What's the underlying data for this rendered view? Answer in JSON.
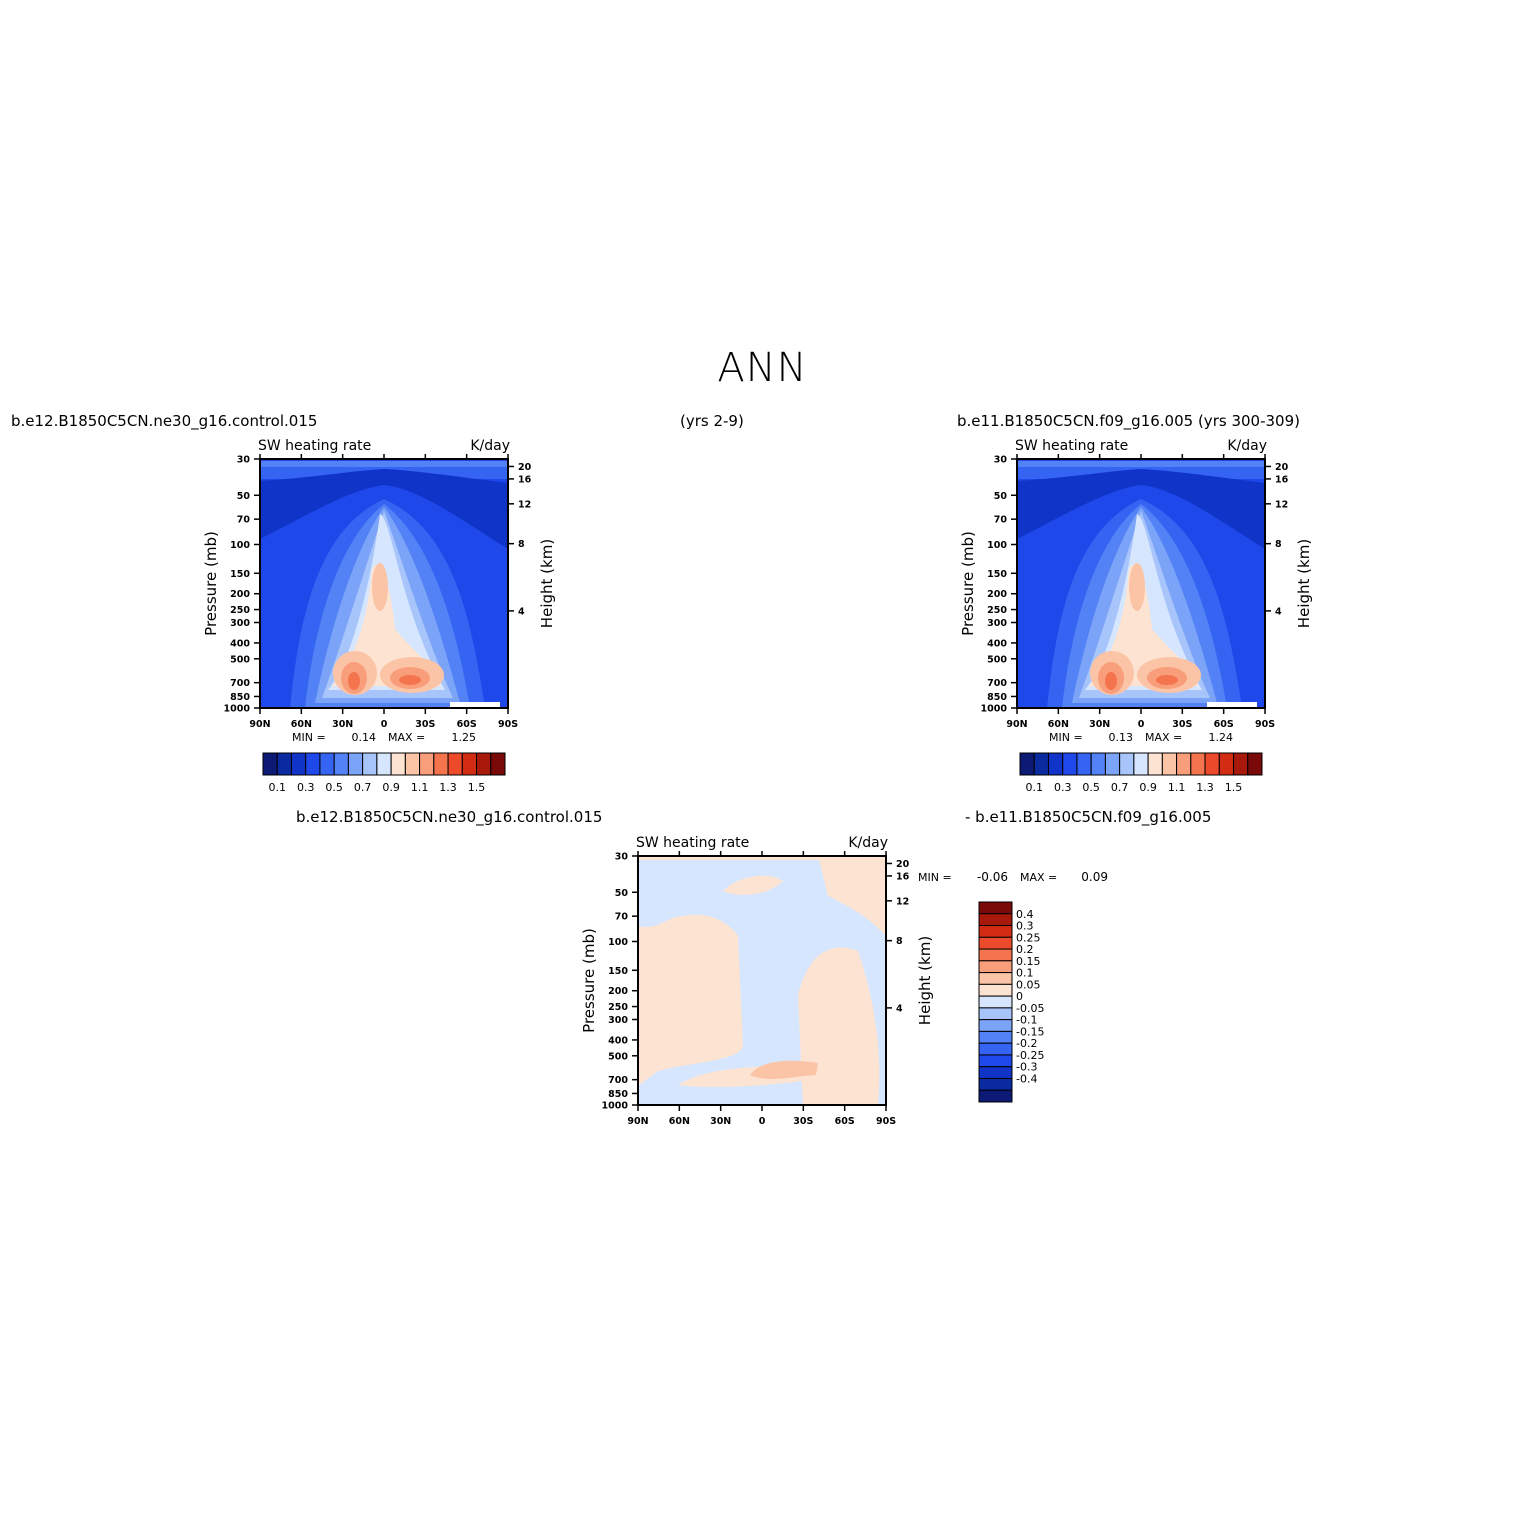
{
  "title": "ANN",
  "header": {
    "left_case": "b.e12.B1850C5CN.ne30_g16.control.015",
    "left_years": "(yrs 2-9)",
    "right_case": "b.e11.B1850C5CN.f09_g16.005 (yrs 300-309)",
    "diff_left": "b.e12.B1850C5CN.ne30_g16.control.015",
    "diff_right": "- b.e11.B1850C5CN.f09_g16.005"
  },
  "colors": {
    "scale_top": [
      "#0d1a75",
      "#0a2aa0",
      "#1034c8",
      "#1e48ea",
      "#3563f2",
      "#5282f5",
      "#7ba3f8",
      "#a8c5fb",
      "#d6e6fe",
      "#fde4d2",
      "#fcc4a6",
      "#f99e7a",
      "#f4744e",
      "#ec4a2a",
      "#d32c14",
      "#a8190c",
      "#7a0a0a"
    ],
    "scale_diff": [
      "#7a0a0a",
      "#a8190c",
      "#d32c14",
      "#ec4a2a",
      "#f4744e",
      "#f99e7a",
      "#fcc4a6",
      "#fde4d2",
      "#d6e6fe",
      "#a8c5fb",
      "#7ba3f8",
      "#5282f5",
      "#3563f2",
      "#1e48ea",
      "#1034c8",
      "#0a2aa0",
      "#0d1a75"
    ]
  },
  "chart_data": [
    {
      "type": "heatmap",
      "panel": "control",
      "label_left": "SW heating rate",
      "label_right": "K/day",
      "ylabel": "Pressure (mb)",
      "ylabel_right": "Height (km)",
      "x_ticks": [
        "90N",
        "60N",
        "30N",
        "0",
        "30S",
        "60S",
        "90S"
      ],
      "y_ticks": [
        "30",
        "50",
        "70",
        "100",
        "150",
        "200",
        "250",
        "300",
        "400",
        "500",
        "700",
        "850",
        "1000"
      ],
      "height_ticks": [
        "20",
        "16",
        "12",
        "8",
        "4"
      ],
      "min_label": "MIN =",
      "min_value": "0.14",
      "max_label": "MAX =",
      "max_value": "1.25",
      "colorbar_labels": [
        "0.1",
        "0.3",
        "0.5",
        "0.7",
        "0.9",
        "1.1",
        "1.3",
        "1.5"
      ]
    },
    {
      "type": "heatmap",
      "panel": "f09",
      "label_left": "SW heating rate",
      "label_right": "K/day",
      "ylabel": "Pressure (mb)",
      "ylabel_right": "Height (km)",
      "x_ticks": [
        "90N",
        "60N",
        "30N",
        "0",
        "30S",
        "60S",
        "90S"
      ],
      "y_ticks": [
        "30",
        "50",
        "70",
        "100",
        "150",
        "200",
        "250",
        "300",
        "400",
        "500",
        "700",
        "850",
        "1000"
      ],
      "height_ticks": [
        "20",
        "16",
        "12",
        "8",
        "4"
      ],
      "min_label": "MIN =",
      "min_value": "0.13",
      "max_label": "MAX =",
      "max_value": "1.24",
      "colorbar_labels": [
        "0.1",
        "0.3",
        "0.5",
        "0.7",
        "0.9",
        "1.1",
        "1.3",
        "1.5"
      ]
    },
    {
      "type": "heatmap",
      "panel": "difference",
      "label_left": "SW heating rate",
      "label_right": "K/day",
      "ylabel": "Pressure (mb)",
      "ylabel_right": "Height (km)",
      "x_ticks": [
        "90N",
        "60N",
        "30N",
        "0",
        "30S",
        "60S",
        "90S"
      ],
      "y_ticks": [
        "30",
        "50",
        "70",
        "100",
        "150",
        "200",
        "250",
        "300",
        "400",
        "500",
        "700",
        "850",
        "1000"
      ],
      "height_ticks": [
        "20",
        "16",
        "12",
        "8",
        "4"
      ],
      "min_label": "MIN =",
      "min_value": "-0.06",
      "max_label": "MAX =",
      "max_value": "0.09",
      "colorbar_labels": [
        "0.4",
        "0.3",
        "0.25",
        "0.2",
        "0.15",
        "0.1",
        "0.05",
        "0",
        "-0.05",
        "-0.1",
        "-0.15",
        "-0.2",
        "-0.25",
        "-0.3",
        "-0.4"
      ]
    }
  ]
}
